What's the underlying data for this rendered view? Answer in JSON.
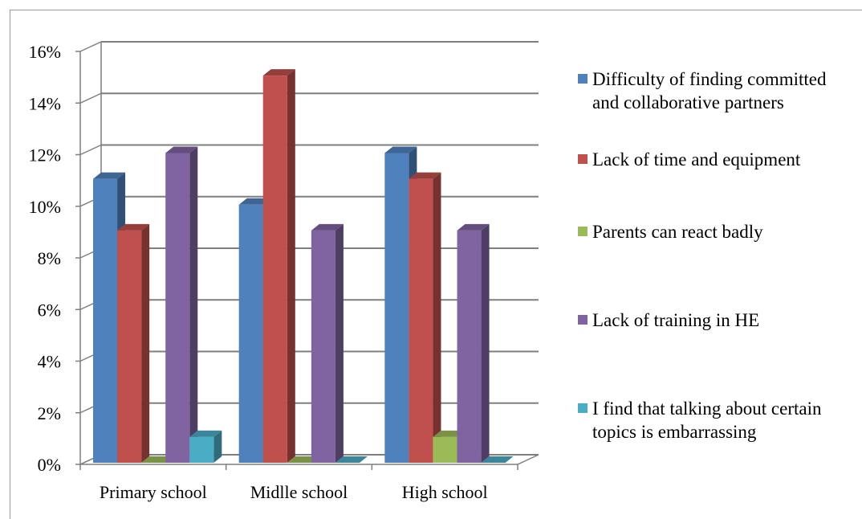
{
  "chart_data": {
    "type": "bar",
    "categories": [
      "Primary school",
      "Midlle school",
      "High school"
    ],
    "series": [
      {
        "name": "Difficulty of finding committed and collaborative partners",
        "color": "#4F81BD",
        "values": [
          11,
          10,
          12
        ]
      },
      {
        "name": "Lack of time and equipment",
        "color": "#C0504D",
        "values": [
          9,
          15,
          11
        ]
      },
      {
        "name": "Parents can react badly",
        "color": "#9BBB59",
        "values": [
          0,
          0,
          1
        ]
      },
      {
        "name": "Lack of training in HE",
        "color": "#8064A2",
        "values": [
          12,
          9,
          9
        ]
      },
      {
        "name": "I find that talking about certain topics is embarrassing",
        "color": "#4BACC6",
        "values": [
          1,
          0,
          0
        ]
      }
    ],
    "y_ticks": [
      "0%",
      "2%",
      "4%",
      "6%",
      "8%",
      "10%",
      "12%",
      "14%",
      "16%"
    ],
    "ylim": [
      0,
      16
    ],
    "y_unit": "%",
    "grid": true,
    "three_d": true,
    "legend_position": "right",
    "title": "",
    "xlabel": "",
    "ylabel": ""
  }
}
